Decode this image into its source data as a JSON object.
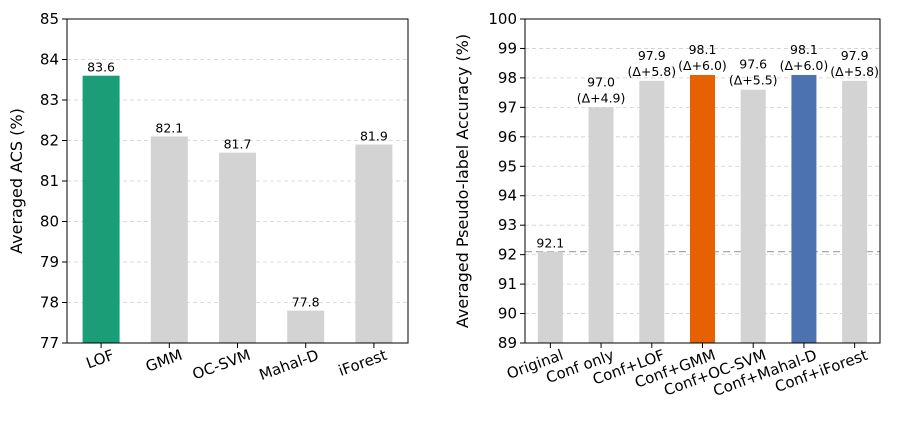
{
  "chart_data": [
    {
      "type": "bar",
      "categories": [
        "LOF",
        "GMM",
        "OC-SVM",
        "Mahal-D",
        "iForest"
      ],
      "values": [
        83.6,
        82.1,
        81.7,
        77.8,
        81.9
      ],
      "value_labels": [
        "83.6",
        "82.1",
        "81.7",
        "77.8",
        "81.9"
      ],
      "delta_labels": [
        "",
        "",
        "",
        "",
        ""
      ],
      "colors": [
        "#1b9e77",
        "#d3d3d3",
        "#d3d3d3",
        "#d3d3d3",
        "#d3d3d3"
      ],
      "title": "",
      "xlabel": "",
      "ylabel": "Averaged ACS (%)",
      "ylim": [
        77,
        85
      ],
      "yticks": [
        77,
        78,
        79,
        80,
        81,
        82,
        83,
        84,
        85
      ],
      "grid": "horizontal dashed",
      "reference_line": null
    },
    {
      "type": "bar",
      "categories": [
        "Original",
        "Conf only",
        "Conf+LOF",
        "Conf+GMM",
        "Conf+OC-SVM",
        "Conf+Mahal-D",
        "Conf+iForest"
      ],
      "values": [
        92.1,
        97.0,
        97.9,
        98.1,
        97.6,
        98.1,
        97.9
      ],
      "value_labels": [
        "92.1",
        "97.0",
        "97.9",
        "98.1",
        "97.6",
        "98.1",
        "97.9"
      ],
      "delta_labels": [
        "",
        "(Δ+4.9)",
        "(Δ+5.8)",
        "(Δ+6.0)",
        "(Δ+5.5)",
        "(Δ+6.0)",
        "(Δ+5.8)"
      ],
      "colors": [
        "#d3d3d3",
        "#d3d3d3",
        "#d3d3d3",
        "#e66101",
        "#d3d3d3",
        "#4c72b0",
        "#d3d3d3"
      ],
      "title": "",
      "xlabel": "",
      "ylabel": "Averaged Pseudo-label Accuracy (%)",
      "ylim": [
        89,
        100
      ],
      "yticks": [
        89,
        90,
        91,
        92,
        93,
        94,
        95,
        96,
        97,
        98,
        99,
        100
      ],
      "grid": "horizontal dashed",
      "reference_line": 92.1
    }
  ]
}
